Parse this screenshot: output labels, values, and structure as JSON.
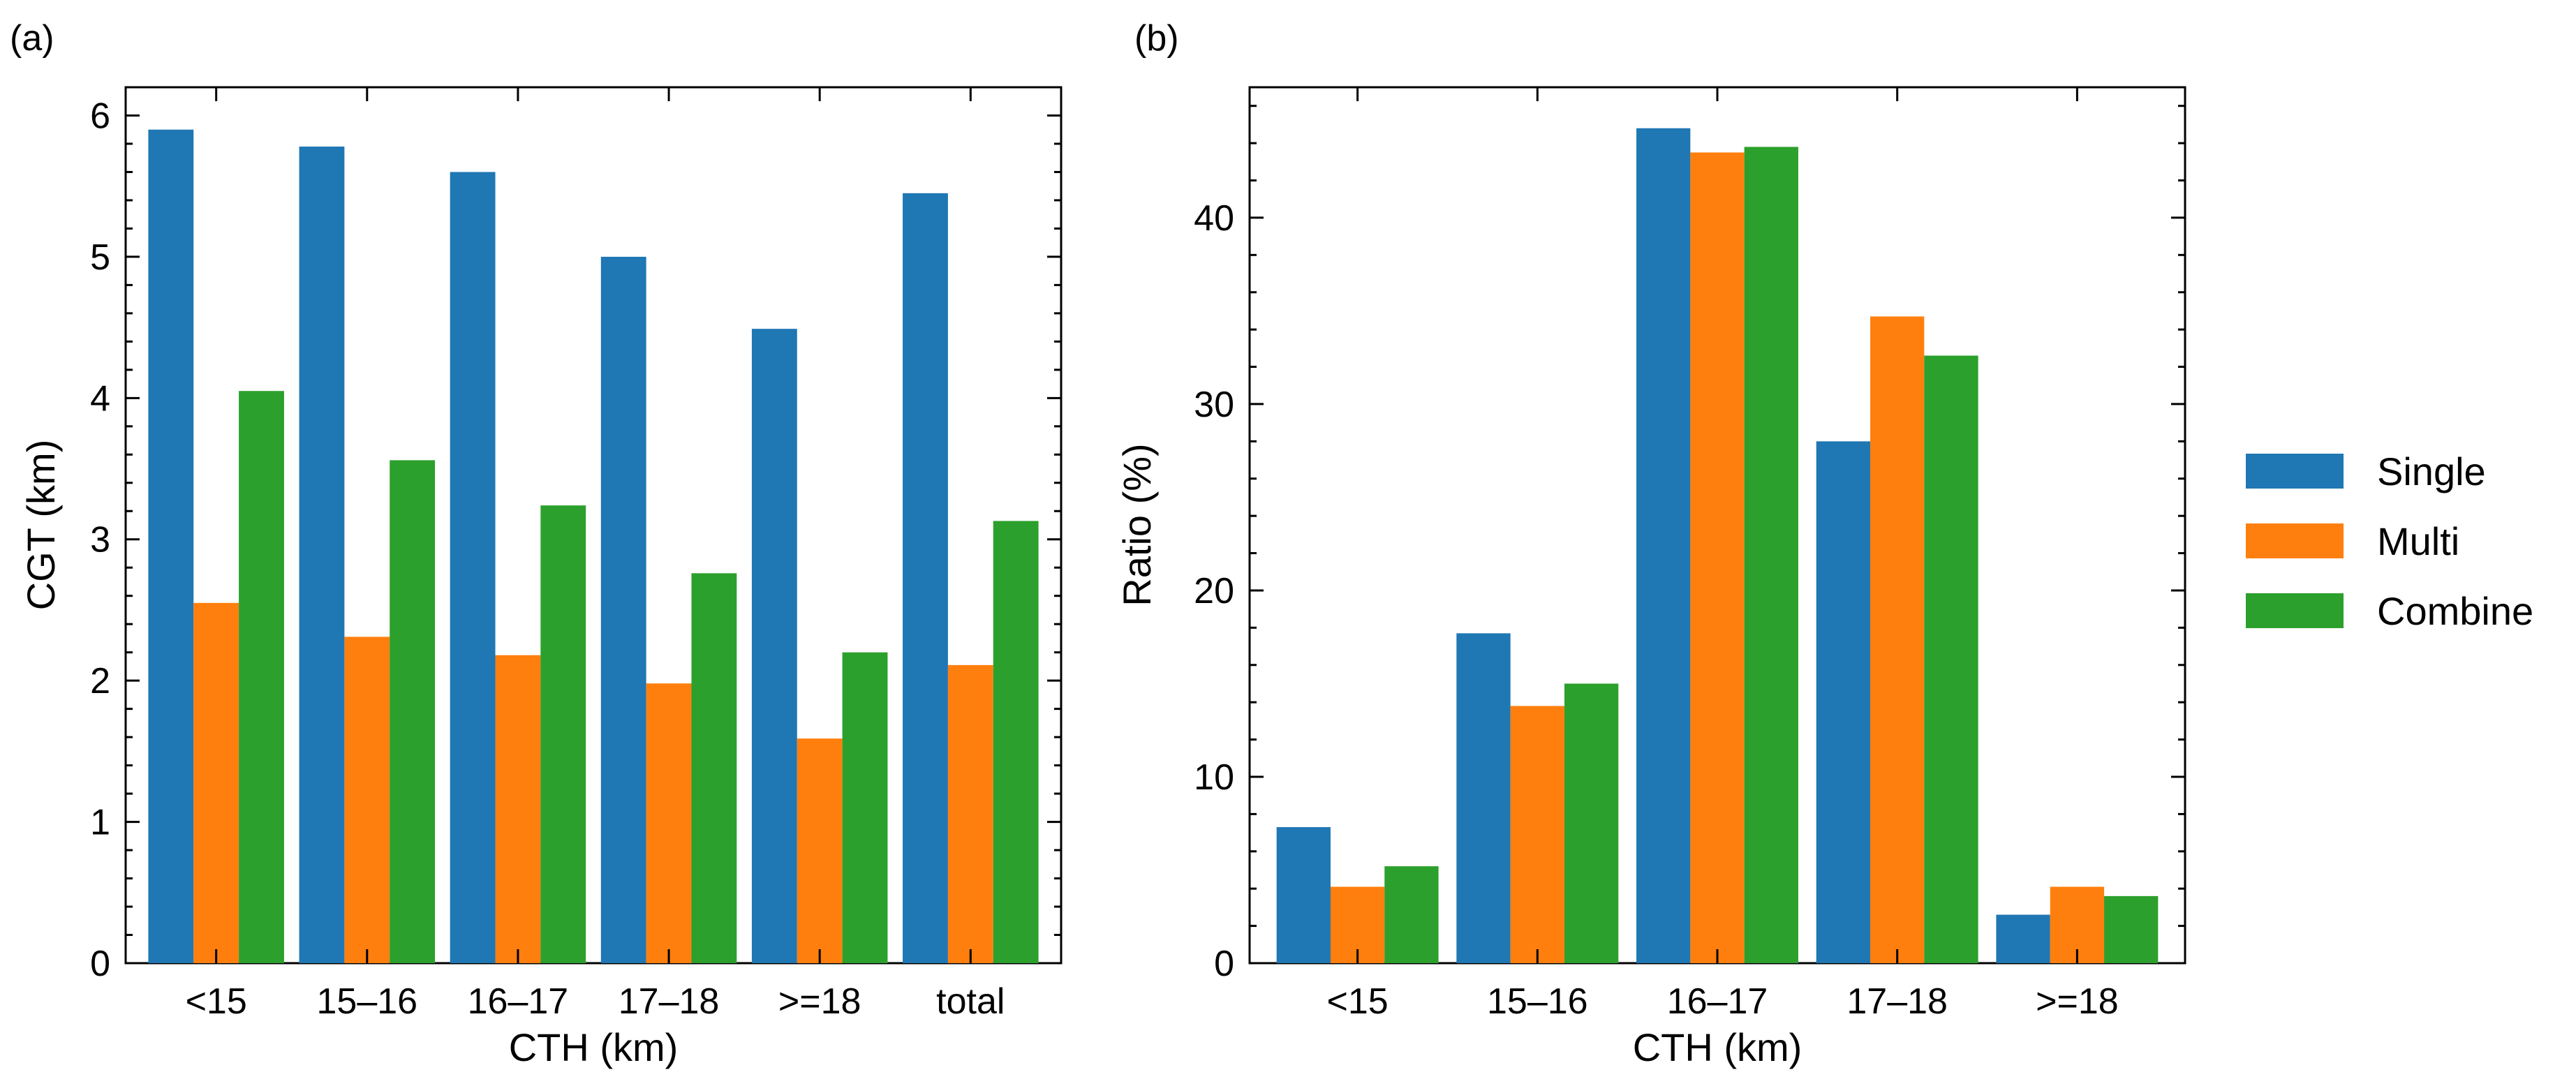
{
  "colors": {
    "Single": "#1f77b4",
    "Multi": "#ff7f0e",
    "Combine": "#2ca02c"
  },
  "legend": {
    "entries": [
      "Single",
      "Multi",
      "Combine"
    ],
    "placement": "right"
  },
  "chart_data": [
    {
      "type": "bar",
      "panel_label": "(a)",
      "xlabel": "CTH (km)",
      "ylabel": "CGT (km)",
      "ylim": [
        0,
        6.2
      ],
      "yticks": [
        0,
        1,
        2,
        3,
        4,
        5,
        6
      ],
      "ytick_labels": [
        "0",
        "1",
        "2",
        "3",
        "4",
        "5",
        "6"
      ],
      "categories": [
        "<15",
        "15–16",
        "16–17",
        "17–18",
        ">=18",
        "total"
      ],
      "series": [
        {
          "name": "Single",
          "values": [
            5.9,
            5.78,
            5.6,
            5.0,
            4.49,
            5.45
          ]
        },
        {
          "name": "Multi",
          "values": [
            2.55,
            2.31,
            2.18,
            1.98,
            1.59,
            2.11
          ]
        },
        {
          "name": "Combine",
          "values": [
            4.05,
            3.56,
            3.24,
            2.76,
            2.2,
            3.13
          ]
        }
      ]
    },
    {
      "type": "bar",
      "panel_label": "(b)",
      "xlabel": "CTH (km)",
      "ylabel": "Ratio (%)",
      "ylim": [
        0,
        47
      ],
      "yticks": [
        0,
        10,
        20,
        30,
        40
      ],
      "ytick_labels": [
        "0",
        "10",
        "20",
        "30",
        "40"
      ],
      "categories": [
        "<15",
        "15–16",
        "16–17",
        "17–18",
        ">=18"
      ],
      "series": [
        {
          "name": "Single",
          "values": [
            7.3,
            17.7,
            44.8,
            28.0,
            2.6
          ]
        },
        {
          "name": "Multi",
          "values": [
            4.1,
            13.8,
            43.5,
            34.7,
            4.1
          ]
        },
        {
          "name": "Combine",
          "values": [
            5.2,
            15.0,
            43.8,
            32.6,
            3.6
          ]
        }
      ]
    }
  ]
}
